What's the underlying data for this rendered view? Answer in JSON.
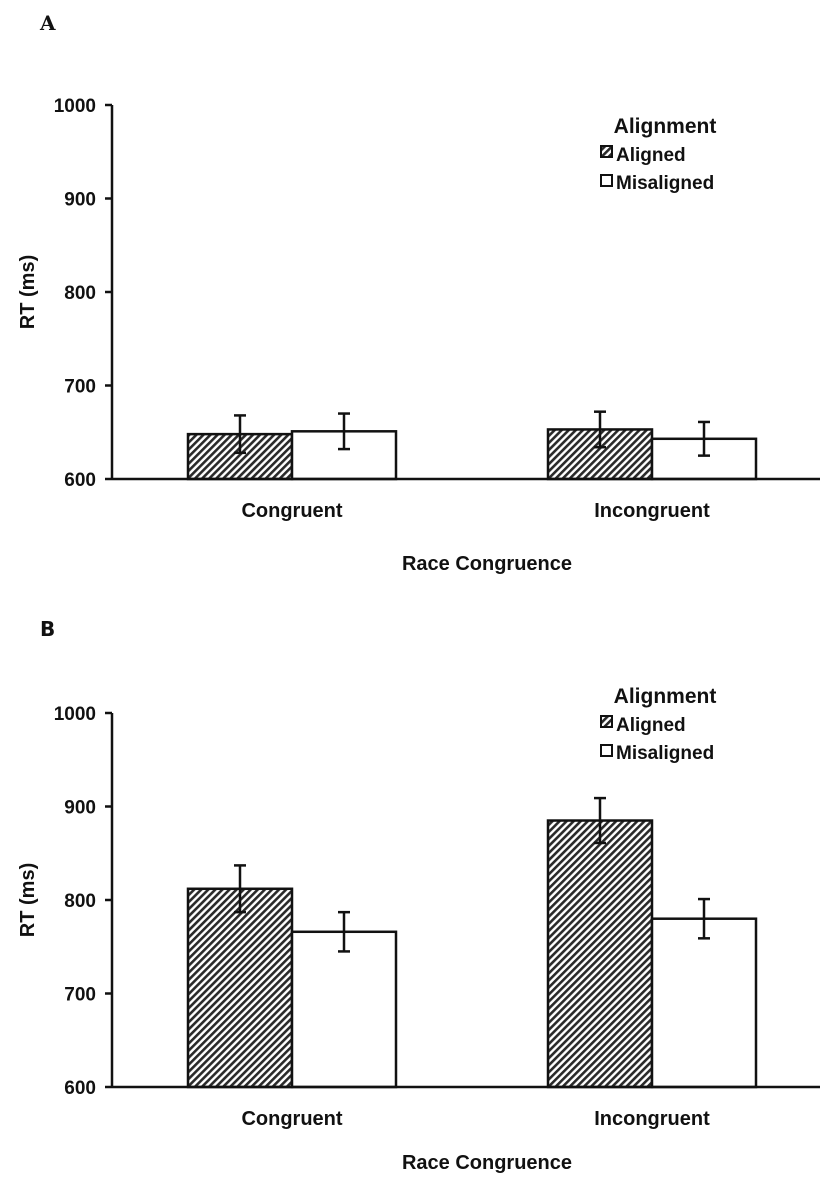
{
  "chart_data": [
    {
      "panel_label": "A",
      "type": "bar",
      "categories": [
        "Congruent",
        "Incongruent"
      ],
      "series": [
        {
          "name": "Aligned",
          "values": [
            648,
            653
          ],
          "errors": [
            20,
            19
          ]
        },
        {
          "name": "Misaligned",
          "values": [
            651,
            643
          ],
          "errors": [
            19,
            18
          ]
        }
      ],
      "xlabel": "Race Congruence",
      "ylabel": "RT (ms)",
      "ylim": [
        600,
        1000
      ],
      "yticks": [
        600,
        700,
        800,
        900,
        1000
      ],
      "legend_title": "Alignment",
      "legend_position": "top-right",
      "grid": false
    },
    {
      "panel_label": "B",
      "type": "bar",
      "categories": [
        "Congruent",
        "Incongruent"
      ],
      "series": [
        {
          "name": "Aligned",
          "values": [
            812,
            885
          ],
          "errors": [
            25,
            24
          ]
        },
        {
          "name": "Misaligned",
          "values": [
            766,
            780
          ],
          "errors": [
            21,
            21
          ]
        }
      ],
      "xlabel": "Race Congruence",
      "ylabel": "RT (ms)",
      "ylim": [
        600,
        1000
      ],
      "yticks": [
        600,
        700,
        800,
        900,
        1000
      ],
      "legend_title": "Alignment",
      "legend_position": "top-right",
      "grid": false
    }
  ],
  "colors": {
    "aligned_fill": "hatched-dark-gray",
    "misaligned_fill": "#ffffff",
    "stroke": "#111111"
  }
}
